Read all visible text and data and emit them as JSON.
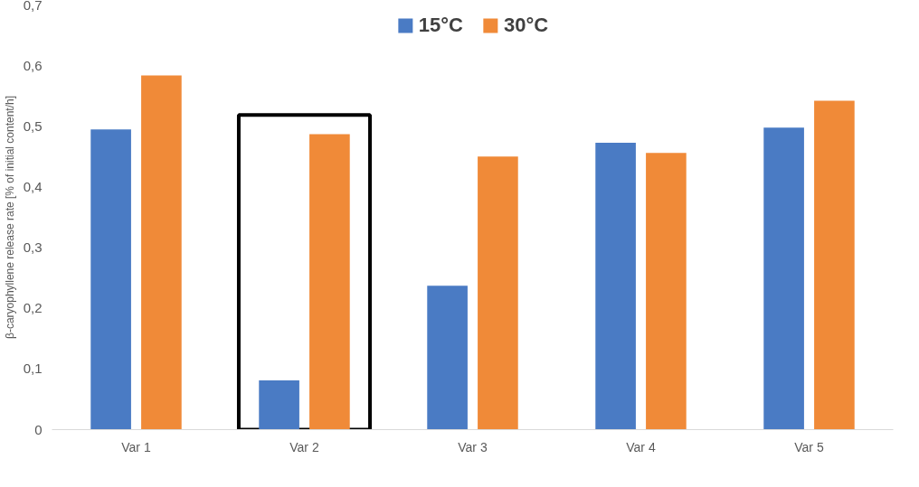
{
  "chart_data": {
    "type": "bar",
    "ylabel": "β-caryophyllene release rate [% of initial content/h]",
    "categories": [
      "Var 1",
      "Var 2",
      "Var 3",
      "Var 4",
      "Var 5"
    ],
    "series": [
      {
        "name": "15°C",
        "color": "#4a7bc4",
        "values": [
          0.495,
          0.081,
          0.237,
          0.473,
          0.498
        ]
      },
      {
        "name": "30°C",
        "color": "#f08a38",
        "values": [
          0.584,
          0.487,
          0.45,
          0.456,
          0.542
        ]
      }
    ],
    "ylim": [
      0,
      0.7
    ],
    "yticks": [
      0,
      {
        "value": 0.1,
        "label": "0,1"
      },
      {
        "value": 0.2,
        "label": "0,2"
      },
      {
        "value": 0.3,
        "label": "0,3"
      },
      {
        "value": 0.4,
        "label": "0,4"
      },
      {
        "value": 0.5,
        "label": "0,5"
      },
      {
        "value": 0.6,
        "label": "0,6"
      },
      {
        "value": 0.7,
        "label": "0,7"
      }
    ],
    "bands": [
      {
        "axis": "x",
        "from": "Var 2",
        "to": "Var 2",
        "color": "#000000"
      }
    ],
    "grid": false,
    "legend": "top"
  }
}
